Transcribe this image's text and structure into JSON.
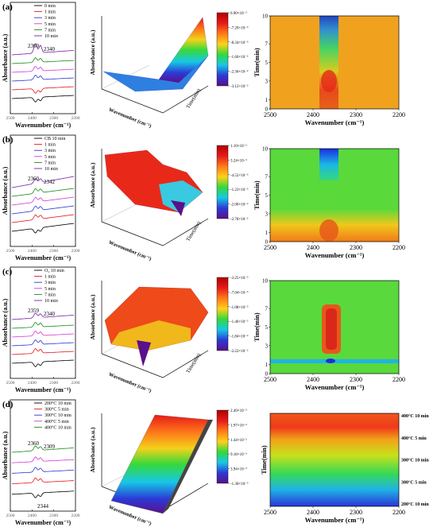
{
  "colors": {
    "series": [
      "#000000",
      "#e8141a",
      "#2b35d6",
      "#d23ad6",
      "#1a8a1a",
      "#7a1ea8"
    ],
    "colormap": [
      "#5b0f8a",
      "#2c3ad6",
      "#17c8e6",
      "#33d93b",
      "#ffd11a",
      "#ff7a1a",
      "#e61a1a",
      "#b30000"
    ]
  },
  "panels": [
    {
      "label": "(a)",
      "spectra": {
        "legend": [
          "0 min",
          "1 min",
          "3 min",
          "5 min",
          "7 min",
          "10 min"
        ],
        "peaks": [
          "2360",
          "2340"
        ],
        "ylabel": "Absorbance (a.u.)",
        "xlabel": "Wavenumber (cm⁻¹)",
        "xticks": [
          "2500",
          "2400",
          "2300",
          "2200"
        ]
      },
      "surface": {
        "zlabel": "Absorbance (a.u.)",
        "xlabel": "Wavenumber (cm⁻¹)",
        "ylabel": "Time(min)",
        "colorbar": [
          "6.90×10⁻²",
          "-7.20×10⁻³",
          "-8.34×10⁻³",
          "-1.60×10⁻²",
          "-2.36×10⁻²",
          "-3.12×10⁻²"
        ]
      },
      "map": {
        "ylabel": "Time(min)",
        "xlabel": "Wavenumber (cm⁻¹)",
        "xticks": [
          "2500",
          "2400",
          "2300",
          "2200"
        ],
        "yticks": [
          "0",
          "1",
          "3",
          "5",
          "7",
          "10"
        ]
      }
    },
    {
      "label": "(b)",
      "spectra": {
        "legend": [
          "CB 10 min",
          "1 min",
          "3 min",
          "5 min",
          "7 min",
          "10 min"
        ],
        "peaks": [
          "2360",
          "2342"
        ],
        "ylabel": "Absorbance (a.u.)",
        "xlabel": "Wavenumber (cm⁻¹)",
        "xticks": [
          "2500",
          "2400",
          "2300",
          "2200"
        ]
      },
      "surface": {
        "zlabel": "Absorbance (a.u.)",
        "xlabel": "Wavenumber (cm⁻¹)",
        "ylabel": "Time(min)",
        "colorbar": [
          "1.10×10⁻²",
          "3.24×10⁻³",
          "-4.52×10⁻³",
          "-1.23×10⁻²",
          "-2.00×10⁻²",
          "-2.78×10⁻²"
        ]
      },
      "map": {
        "ylabel": "Time(min)",
        "xlabel": "Wavenumber (cm⁻¹)",
        "xticks": [
          "2500",
          "2400",
          "2300",
          "2200"
        ],
        "yticks": [
          "0",
          "1",
          "3",
          "5",
          "7",
          "10"
        ]
      }
    },
    {
      "label": "(c)",
      "spectra": {
        "legend": [
          "O₂ 10 min",
          "1 min",
          "3 min",
          "5 min",
          "7 min",
          "10 min"
        ],
        "peaks": [
          "2359",
          "2340"
        ],
        "ylabel": "Absorbance (a.u.)",
        "xlabel": "Wavenumber (cm⁻¹)",
        "xticks": [
          "2500",
          "2400",
          "2300",
          "2200"
        ]
      },
      "surface": {
        "zlabel": "Absorbance (a.u.)",
        "xlabel": "Wavenumber (cm⁻¹)",
        "ylabel": "Time(min)",
        "colorbar": [
          "-3.25×10⁻³",
          "-7.04×10⁻³",
          "-1.08×10⁻²",
          "-1.46×10⁻²",
          "-1.84×10⁻²",
          "-2.22×10⁻²"
        ]
      },
      "map": {
        "ylabel": "Time(min)",
        "xlabel": "Wavenumber (cm⁻¹)",
        "xticks": [
          "2500",
          "2400",
          "2300",
          "2200"
        ],
        "yticks": [
          "0",
          "1",
          "3",
          "5",
          "7",
          "10"
        ]
      }
    },
    {
      "label": "(d)",
      "spectra": {
        "legend": [
          "200°C 10 min",
          "300°C 5 min",
          "300°C 10 min",
          "400°C 5 min",
          "400°C 10 min"
        ],
        "peaks": [
          "2360",
          "2309",
          "2344"
        ],
        "ylabel": "Absorbance (a.u.)",
        "xlabel": "Wavenumber (cm⁻¹)",
        "xticks": [
          "2500",
          "2400",
          "2300",
          "2200"
        ]
      },
      "surface": {
        "zlabel": "Absorbance (a.u.)",
        "xlabel": "Wavenumber (cm⁻¹)",
        "ylabel": "",
        "colorbar": [
          "2.49×10⁻²",
          "1.97×10⁻²",
          "1.44×10⁻²",
          "9.18×10⁻³",
          "3.94×10⁻³",
          "-1.30×10⁻³"
        ]
      },
      "map": {
        "ylabel": "Time(min)",
        "xlabel": "Wavenumber (cm⁻¹)",
        "xticks": [
          "2500",
          "2400",
          "2300",
          "2200"
        ],
        "yticks": [
          "200°C 10 min",
          "300°C 5 min",
          "300°C 10 min",
          "400°C 5 min",
          "400°C 10 min"
        ]
      }
    }
  ],
  "chart_data": [
    {
      "panel": "(a)",
      "type": "line",
      "title": "",
      "xlabel": "Wavenumber (cm⁻¹)",
      "ylabel": "Absorbance (a.u.)",
      "xlim": [
        2500,
        2200
      ],
      "series": [
        {
          "name": "0 min"
        },
        {
          "name": "1 min"
        },
        {
          "name": "3 min"
        },
        {
          "name": "5 min"
        },
        {
          "name": "7 min"
        },
        {
          "name": "10 min"
        }
      ],
      "peaks": [
        2360,
        2340
      ]
    },
    {
      "panel": "(a)",
      "type": "heatmap",
      "xlabel": "Wavenumber (cm⁻¹)",
      "ylabel": "Time(min)",
      "xlim": [
        2500,
        2200
      ],
      "ylim": [
        0,
        10
      ],
      "yticks": [
        0,
        1,
        3,
        5,
        7,
        10
      ]
    },
    {
      "panel": "(b)",
      "type": "line",
      "xlabel": "Wavenumber (cm⁻¹)",
      "ylabel": "Absorbance (a.u.)",
      "xlim": [
        2500,
        2200
      ],
      "series": [
        {
          "name": "CB 10 min"
        },
        {
          "name": "1 min"
        },
        {
          "name": "3 min"
        },
        {
          "name": "5 min"
        },
        {
          "name": "7 min"
        },
        {
          "name": "10 min"
        }
      ],
      "peaks": [
        2360,
        2342
      ]
    },
    {
      "panel": "(b)",
      "type": "heatmap",
      "xlabel": "Wavenumber (cm⁻¹)",
      "ylabel": "Time(min)",
      "xlim": [
        2500,
        2200
      ],
      "ylim": [
        0,
        10
      ]
    },
    {
      "panel": "(c)",
      "type": "line",
      "xlabel": "Wavenumber (cm⁻¹)",
      "ylabel": "Absorbance (a.u.)",
      "xlim": [
        2500,
        2200
      ],
      "series": [
        {
          "name": "O₂ 10 min"
        },
        {
          "name": "1 min"
        },
        {
          "name": "3 min"
        },
        {
          "name": "5 min"
        },
        {
          "name": "7 min"
        },
        {
          "name": "10 min"
        }
      ],
      "peaks": [
        2359,
        2340
      ]
    },
    {
      "panel": "(c)",
      "type": "heatmap",
      "xlabel": "Wavenumber (cm⁻¹)",
      "ylabel": "Time(min)",
      "xlim": [
        2500,
        2200
      ],
      "ylim": [
        0,
        10
      ]
    },
    {
      "panel": "(d)",
      "type": "line",
      "xlabel": "Wavenumber (cm⁻¹)",
      "ylabel": "Absorbance (a.u.)",
      "xlim": [
        2500,
        2200
      ],
      "series": [
        {
          "name": "200°C 10 min"
        },
        {
          "name": "300°C 5 min"
        },
        {
          "name": "300°C 10 min"
        },
        {
          "name": "400°C 5 min"
        },
        {
          "name": "400°C 10 min"
        }
      ],
      "peaks": [
        2360,
        2309,
        2344
      ]
    },
    {
      "panel": "(d)",
      "type": "heatmap",
      "xlabel": "Wavenumber (cm⁻¹)",
      "ylabel": "Time(min)",
      "xlim": [
        2500,
        2200
      ]
    }
  ]
}
